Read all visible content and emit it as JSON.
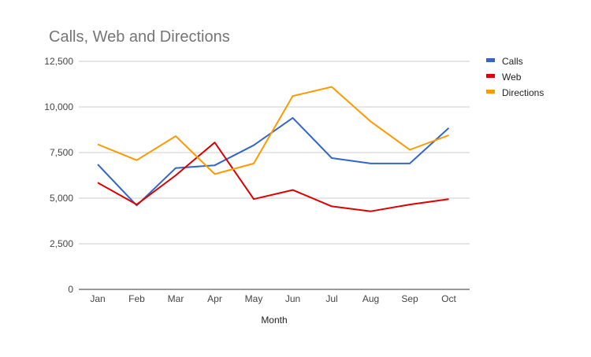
{
  "chart_data": {
    "type": "line",
    "title": "Calls, Web and Directions",
    "xlabel": "Month",
    "ylabel": "",
    "categories": [
      "Jan",
      "Feb",
      "Mar",
      "Apr",
      "May",
      "Jun",
      "Jul",
      "Aug",
      "Sep",
      "Oct"
    ],
    "ylim": [
      0,
      12500
    ],
    "yticks": [
      0,
      2500,
      5000,
      7500,
      10000,
      12500
    ],
    "ytick_labels": [
      "0",
      "2,500",
      "5,000",
      "7,500",
      "10,000",
      "12,500"
    ],
    "grid": true,
    "legend_position": "right",
    "series": [
      {
        "name": "Calls",
        "color": "#3366cc",
        "values": [
          6850,
          4600,
          6650,
          6800,
          7900,
          9400,
          7200,
          6900,
          6900,
          8850
        ]
      },
      {
        "name": "Web",
        "color": "#dc0000",
        "values": [
          5850,
          4650,
          6250,
          8050,
          4950,
          5450,
          4550,
          4280,
          4650,
          4950
        ]
      },
      {
        "name": "Directions",
        "color": "#ff9900",
        "values": [
          7950,
          7080,
          8400,
          6320,
          6900,
          10600,
          11100,
          9200,
          7650,
          8450
        ]
      }
    ]
  }
}
